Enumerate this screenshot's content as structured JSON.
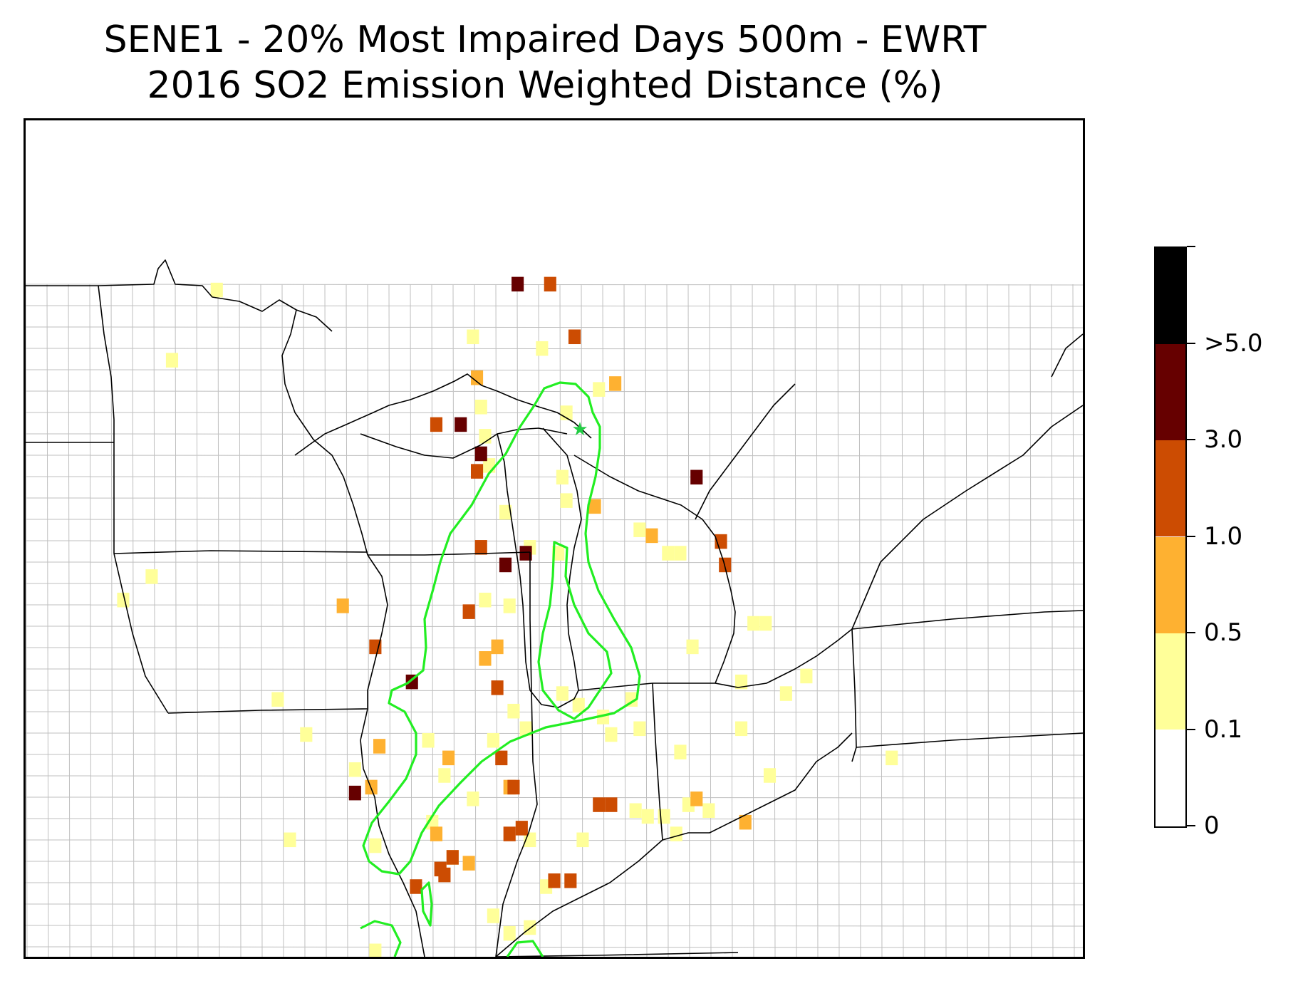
{
  "title": {
    "line1": "SENE1 - 20% Most Impaired Days 500m - EWRT",
    "line2": "2016 SO2 Emission Weighted Distance (%)"
  },
  "colorbar": {
    "segments": [
      {
        "color": "#ffffff"
      },
      {
        "color": "#ffff99"
      },
      {
        "color": "#feb131"
      },
      {
        "color": "#cc4c02"
      },
      {
        "color": "#660000"
      },
      {
        "color": "#000000"
      }
    ],
    "labels": [
      "0",
      "0.1",
      "0.5",
      "1.0",
      "3.0",
      ">5.0"
    ]
  },
  "colors": {
    "contour": "#22ee22",
    "state_border": "#000000",
    "county_border": "#aaaaaa",
    "site_marker": "#22cc44"
  },
  "map": {
    "site_marker_icon": "star-icon",
    "cells_by_class": {
      "0.1-0.5": [
        [
          -94.8,
          47.3
        ],
        [
          -95.9,
          46.1
        ],
        [
          -88.5,
          46.5
        ],
        [
          -88.3,
          45.3
        ],
        [
          -88.2,
          44.8
        ],
        [
          -88.1,
          44.3
        ],
        [
          -86.8,
          46.3
        ],
        [
          -85.4,
          45.6
        ],
        [
          -86.3,
          44.1
        ],
        [
          -86.2,
          43.7
        ],
        [
          -86.4,
          42.8
        ],
        [
          -87.1,
          42.9
        ],
        [
          -87.6,
          41.9
        ],
        [
          -83.7,
          42.8
        ],
        [
          -83.4,
          42.8
        ],
        [
          -81.6,
          41.6
        ],
        [
          -81.3,
          41.6
        ],
        [
          -83.1,
          41.2
        ],
        [
          -81.9,
          40.6
        ],
        [
          -80.8,
          40.4
        ],
        [
          -80.3,
          40.7
        ],
        [
          -81.9,
          39.8
        ],
        [
          -83.4,
          39.4
        ],
        [
          -84.6,
          40.3
        ],
        [
          -84.4,
          39.8
        ],
        [
          -85.1,
          39.7
        ],
        [
          -85.3,
          40.0
        ],
        [
          -85.9,
          40.2
        ],
        [
          -87.5,
          40.1
        ],
        [
          -87.2,
          39.8
        ],
        [
          -88.0,
          39.6
        ],
        [
          -88.5,
          38.6
        ],
        [
          -89.2,
          39.0
        ],
        [
          -89.6,
          39.6
        ],
        [
          -89.5,
          38.2
        ],
        [
          -91.4,
          39.1
        ],
        [
          -93.3,
          40.3
        ],
        [
          -92.6,
          39.7
        ],
        [
          -93.0,
          37.9
        ],
        [
          -90.9,
          37.8
        ],
        [
          -87.1,
          37.9
        ],
        [
          -86.7,
          37.1
        ],
        [
          -87.1,
          36.4
        ],
        [
          -87.6,
          36.3
        ],
        [
          -88.0,
          36.6
        ],
        [
          -84.5,
          38.4
        ],
        [
          -84.2,
          38.3
        ],
        [
          -83.8,
          38.3
        ],
        [
          -83.2,
          38.5
        ],
        [
          -82.7,
          38.4
        ],
        [
          -81.2,
          39.0
        ],
        [
          -83.5,
          38.0
        ],
        [
          -85.8,
          37.9
        ],
        [
          -78.2,
          39.3
        ],
        [
          -89.0,
          37.6
        ],
        [
          -90.9,
          36.0
        ],
        [
          -86.2,
          45.2
        ],
        [
          -97.1,
          42.0
        ],
        [
          -96.4,
          42.4
        ],
        [
          -88.2,
          42.0
        ],
        [
          -87.7,
          43.5
        ],
        [
          -84.4,
          43.2
        ],
        [
          -86.3,
          40.4
        ]
      ],
      "0.5-1.0": [
        [
          -88.4,
          45.8
        ],
        [
          -85.0,
          45.7
        ],
        [
          -85.5,
          43.6
        ],
        [
          -84.1,
          43.1
        ],
        [
          -91.7,
          41.9
        ],
        [
          -88.2,
          41.0
        ],
        [
          -87.9,
          41.2
        ],
        [
          -89.1,
          39.3
        ],
        [
          -91.0,
          38.8
        ],
        [
          -89.4,
          38.0
        ],
        [
          -88.6,
          37.5
        ],
        [
          -83.0,
          38.6
        ],
        [
          -81.8,
          38.2
        ],
        [
          -87.6,
          38.8
        ],
        [
          -90.8,
          39.5
        ]
      ],
      "1.0-3.0": [
        [
          -86.6,
          47.4
        ],
        [
          -86.0,
          46.5
        ],
        [
          -89.4,
          45.0
        ],
        [
          -88.4,
          44.2
        ],
        [
          -88.3,
          42.9
        ],
        [
          -88.6,
          41.8
        ],
        [
          -82.4,
          43.0
        ],
        [
          -82.3,
          42.6
        ],
        [
          -90.9,
          41.2
        ],
        [
          -87.9,
          40.5
        ],
        [
          -87.8,
          39.3
        ],
        [
          -87.5,
          38.8
        ],
        [
          -87.6,
          38.0
        ],
        [
          -87.3,
          38.1
        ],
        [
          -85.4,
          38.5
        ],
        [
          -85.1,
          38.5
        ],
        [
          -86.5,
          37.2
        ],
        [
          -86.1,
          37.2
        ],
        [
          -89.9,
          37.1
        ],
        [
          -89.3,
          37.4
        ],
        [
          -89.0,
          37.6
        ],
        [
          -89.2,
          37.3
        ]
      ],
      "3.0-5.0": [
        [
          -87.4,
          47.4
        ],
        [
          -88.8,
          45.0
        ],
        [
          -88.3,
          44.5
        ],
        [
          -87.7,
          42.6
        ],
        [
          -87.2,
          42.8
        ],
        [
          -83.0,
          44.1
        ],
        [
          -90.0,
          40.6
        ],
        [
          -91.4,
          38.7
        ]
      ]
    }
  }
}
